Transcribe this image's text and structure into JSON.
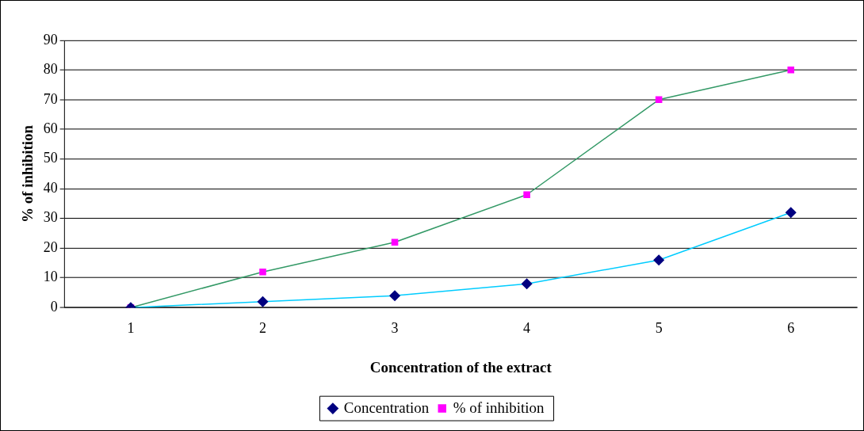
{
  "chart_data": {
    "type": "line",
    "xlabel": "Concentration of the extract",
    "ylabel": "% of inhibition",
    "categories": [
      "1",
      "2",
      "3",
      "4",
      "5",
      "6"
    ],
    "series": [
      {
        "name": "Concentration",
        "color": "#00ccff",
        "colors": [
          "#000080",
          "#000080",
          "#000080",
          "#000080",
          "#000080",
          "#000080"
        ],
        "marker": "diamond",
        "values": [
          0,
          2,
          4,
          8,
          16,
          32
        ]
      },
      {
        "name": "% of inhibition",
        "color": "#339966",
        "colors": [
          "#ff00ff",
          "#ff00ff",
          "#ff00ff",
          "#ff00ff",
          "#ff00ff",
          "#ff00ff"
        ],
        "marker": "square",
        "values": [
          0,
          12,
          22,
          38,
          70,
          80
        ]
      }
    ],
    "ylim": [
      0,
      90
    ],
    "yticks": [
      0,
      10,
      20,
      30,
      40,
      50,
      60,
      70,
      80,
      90
    ],
    "grid": "y",
    "legend": "bottom"
  }
}
